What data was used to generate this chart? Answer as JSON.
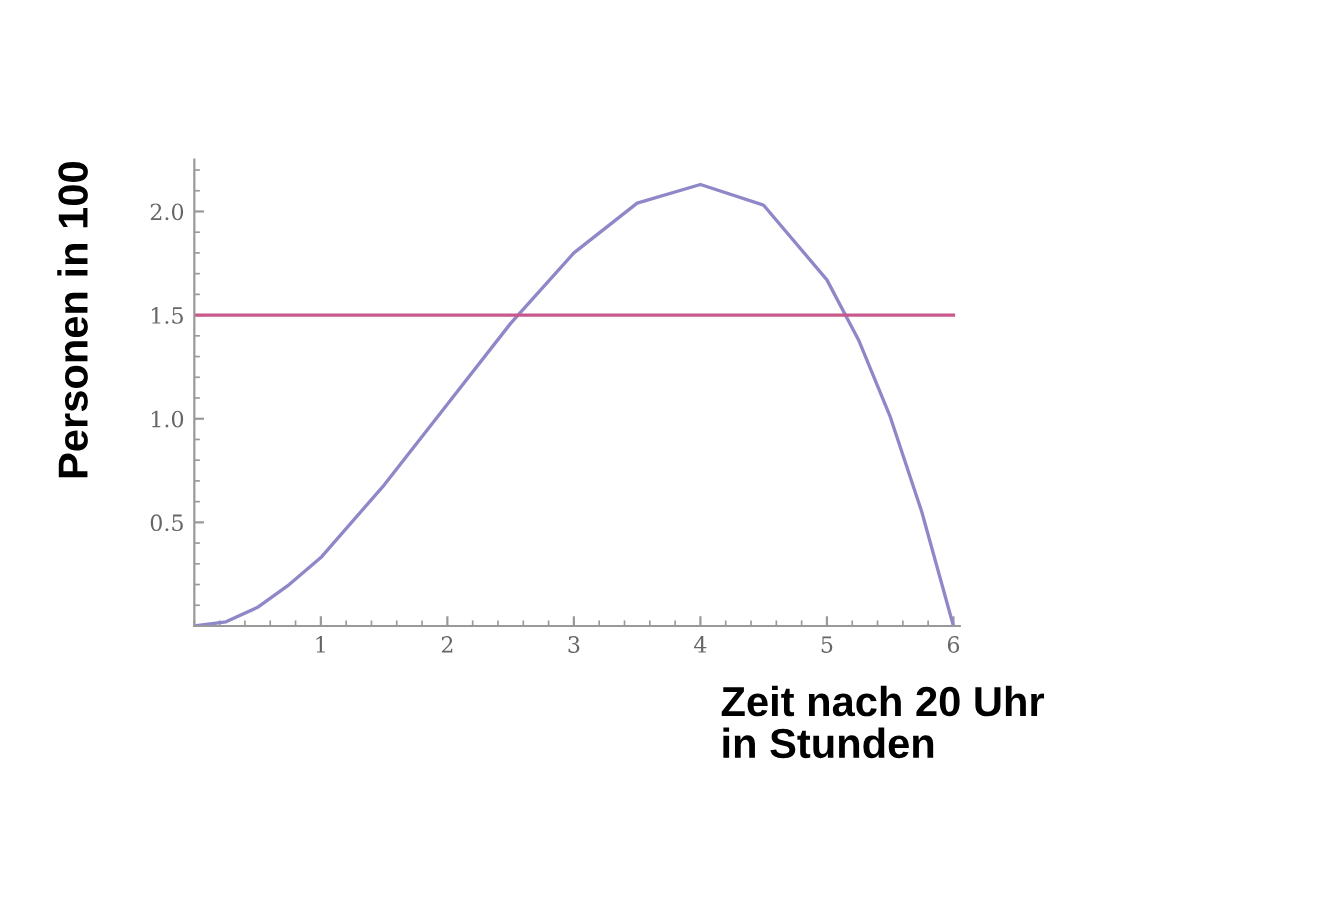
{
  "chart_data": {
    "type": "line",
    "xlabel": "Zeit nach 20 Uhr\nin Stunden",
    "ylabel": "Personen in 100",
    "x": [
      0,
      0.25,
      0.5,
      0.75,
      1,
      1.5,
      2,
      2.5,
      3,
      3.5,
      4,
      4.5,
      5,
      5.25,
      5.5,
      5.75,
      6
    ],
    "series": [
      {
        "color": "#8f88c8",
        "values": [
          0,
          0.02,
          0.09,
          0.2,
          0.33,
          0.68,
          1.07,
          1.46,
          1.8,
          2.04,
          2.13,
          2.03,
          1.67,
          1.38,
          1.01,
          0.55,
          0
        ]
      }
    ],
    "ref_lines": [
      {
        "axis": "y",
        "value": 1.5,
        "color": "#c9588c"
      }
    ],
    "xlim": [
      0,
      6.05
    ],
    "ylim": [
      0,
      2.25
    ],
    "xticks": [
      1,
      2,
      3,
      4,
      5,
      6
    ],
    "yticks": [
      {
        "value": 0.5,
        "label": "0.5"
      },
      {
        "value": 1.0,
        "label": "1.0"
      },
      {
        "value": 1.5,
        "label": "1.5"
      },
      {
        "value": 2.0,
        "label": "2.0"
      }
    ],
    "grid": false,
    "legend": false,
    "marker": "none",
    "line_style": "solid"
  }
}
